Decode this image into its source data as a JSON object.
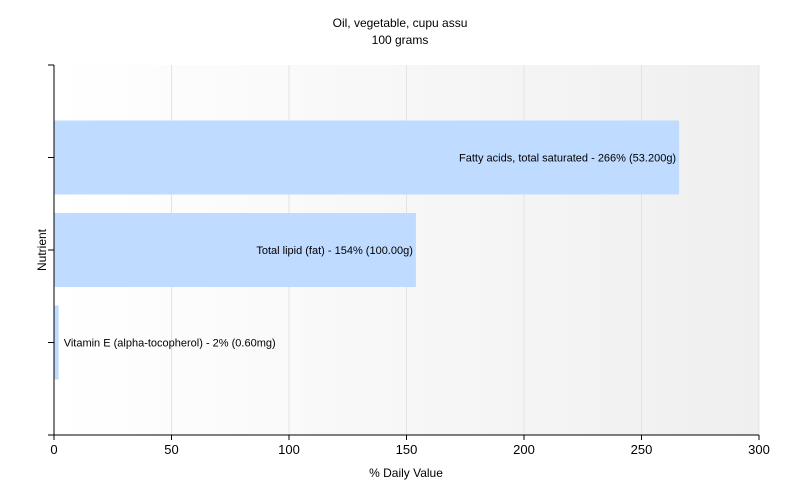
{
  "chart_data": {
    "type": "bar",
    "orientation": "horizontal",
    "title": "Oil, vegetable, cupu assu",
    "subtitle": "100 grams",
    "xlabel": "% Daily Value",
    "ylabel": "Nutrient",
    "xlim": [
      0,
      300
    ],
    "x_ticks": [
      0,
      50,
      100,
      150,
      200,
      250,
      300
    ],
    "grid": true,
    "bar_color": "#bfdbff",
    "categories": [
      "Fatty acids, total saturated",
      "Total lipid (fat)",
      "Vitamin E (alpha-tocopherol)"
    ],
    "values": [
      266,
      154,
      2
    ],
    "data_labels": [
      "Fatty acids, total saturated - 266% (53.200g)",
      "Total lipid (fat) - 154% (100.00g)",
      "Vitamin E (alpha-tocopherol) - 2% (0.60mg)"
    ]
  }
}
